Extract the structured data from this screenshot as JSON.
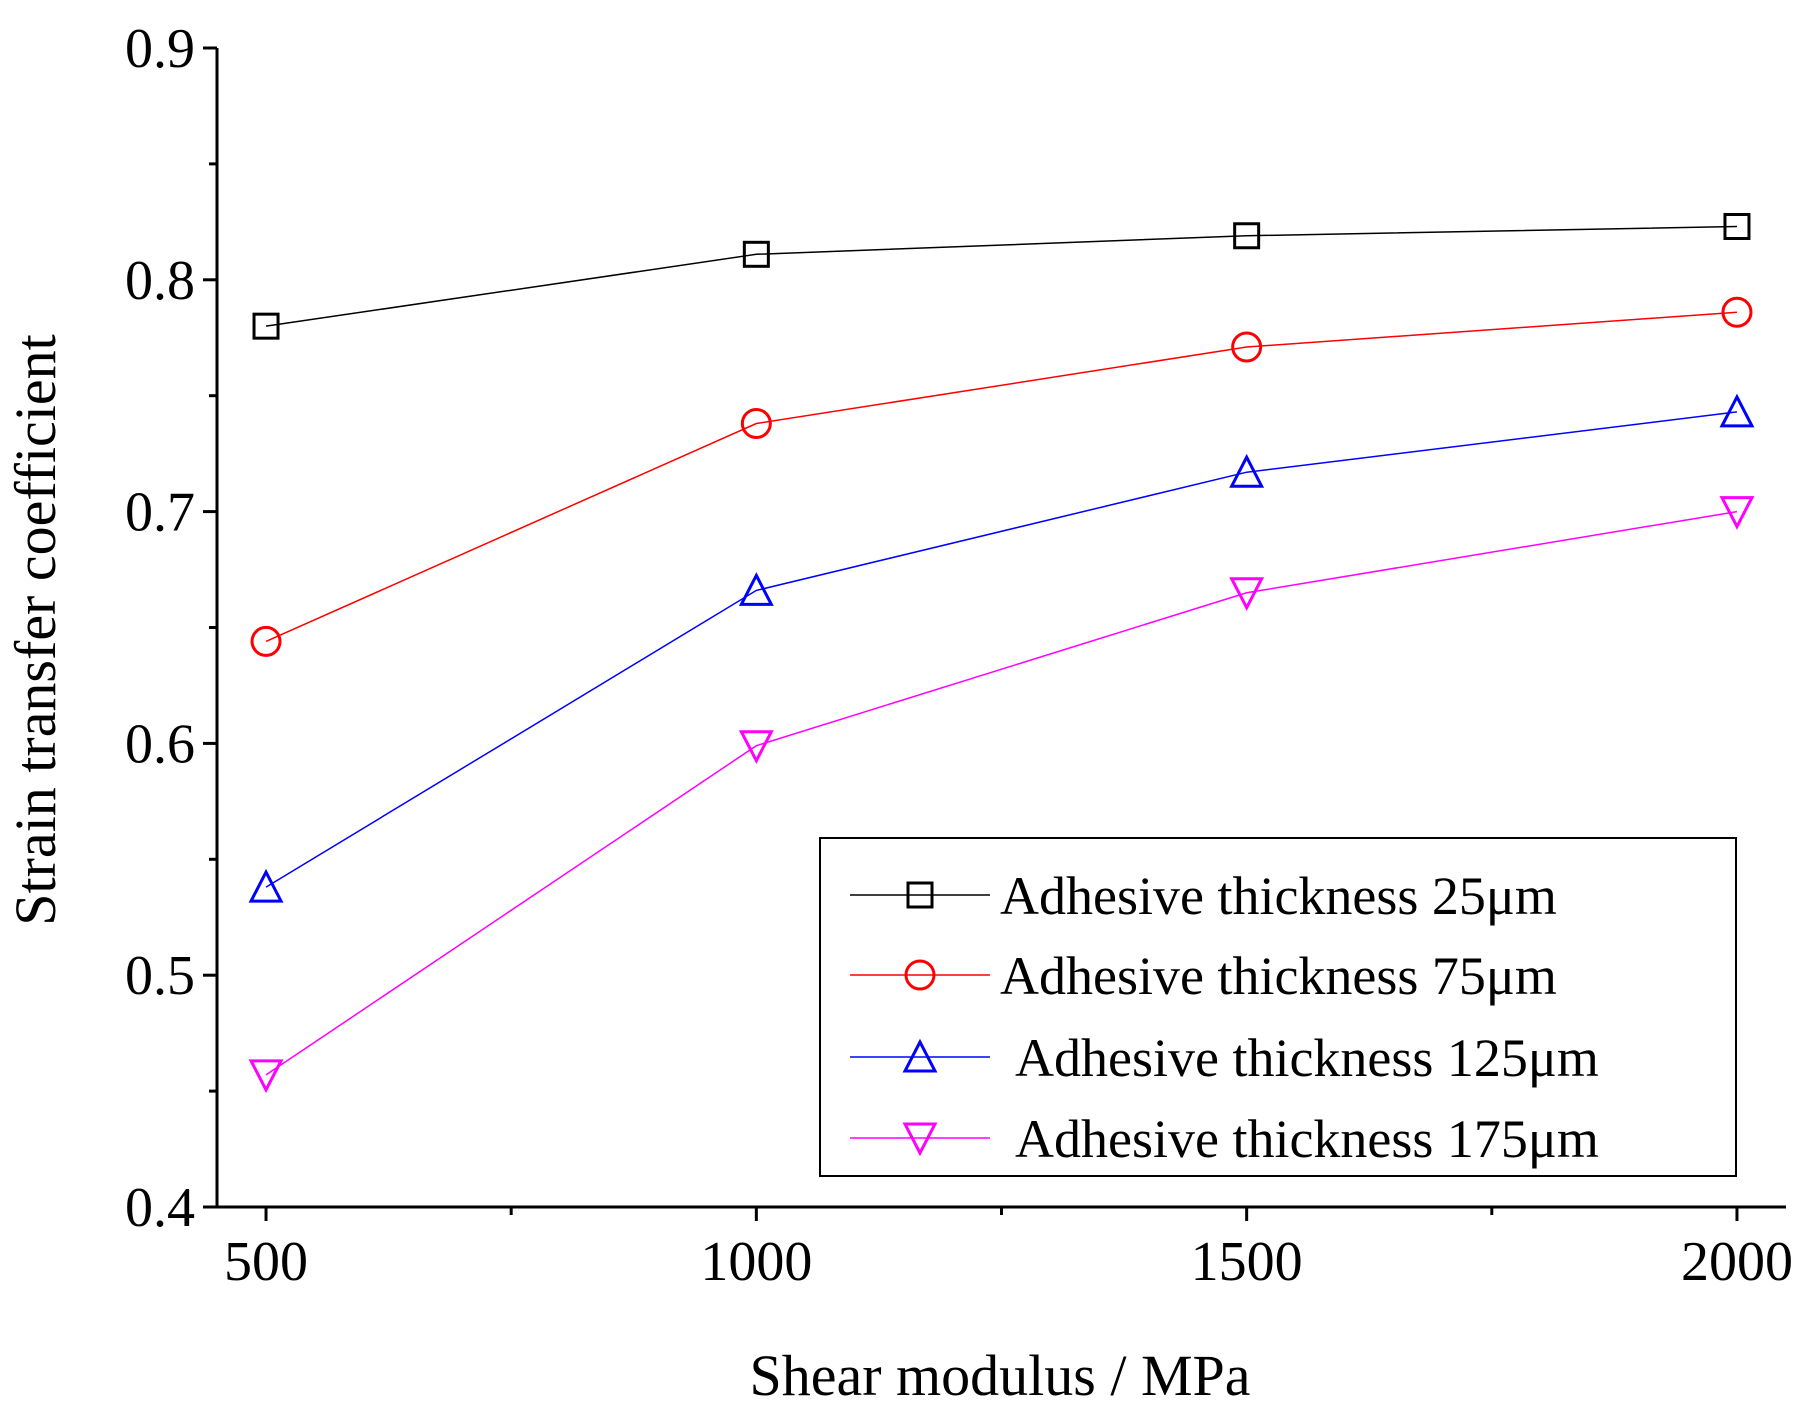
{
  "chart_data": {
    "type": "line",
    "title": "",
    "xlabel": "Shear modulus / MPa",
    "ylabel": "Strain transfer coefficient",
    "x": [
      500,
      1000,
      1500,
      2000
    ],
    "xlim": [
      450,
      2050
    ],
    "ylim": [
      0.4,
      0.9
    ],
    "xticks": [
      500,
      1000,
      1500,
      2000
    ],
    "xtick_labels": [
      "500",
      "1000",
      "1500",
      "2000"
    ],
    "yticks": [
      0.4,
      0.5,
      0.6,
      0.7,
      0.8,
      0.9
    ],
    "ytick_labels": [
      "0.4",
      "0.5",
      "0.6",
      "0.7",
      "0.8",
      "0.9"
    ],
    "grid": false,
    "legend_position": "bottom-right",
    "series": [
      {
        "name": "Adhesive thickness 25μm",
        "marker": "square",
        "color": "#000000",
        "values": [
          0.78,
          0.811,
          0.819,
          0.823
        ]
      },
      {
        "name": "Adhesive thickness 75μm",
        "marker": "circle",
        "color": "#ff0000",
        "values": [
          0.644,
          0.738,
          0.771,
          0.786
        ]
      },
      {
        "name": "Adhesive thickness 125μm",
        "marker": "triangle-up",
        "color": "#0000ff",
        "values": [
          0.538,
          0.666,
          0.717,
          0.743
        ]
      },
      {
        "name": "Adhesive thickness 175μm",
        "marker": "triangle-down",
        "color": "#ff00ff",
        "values": [
          0.457,
          0.599,
          0.665,
          0.7
        ]
      }
    ]
  }
}
